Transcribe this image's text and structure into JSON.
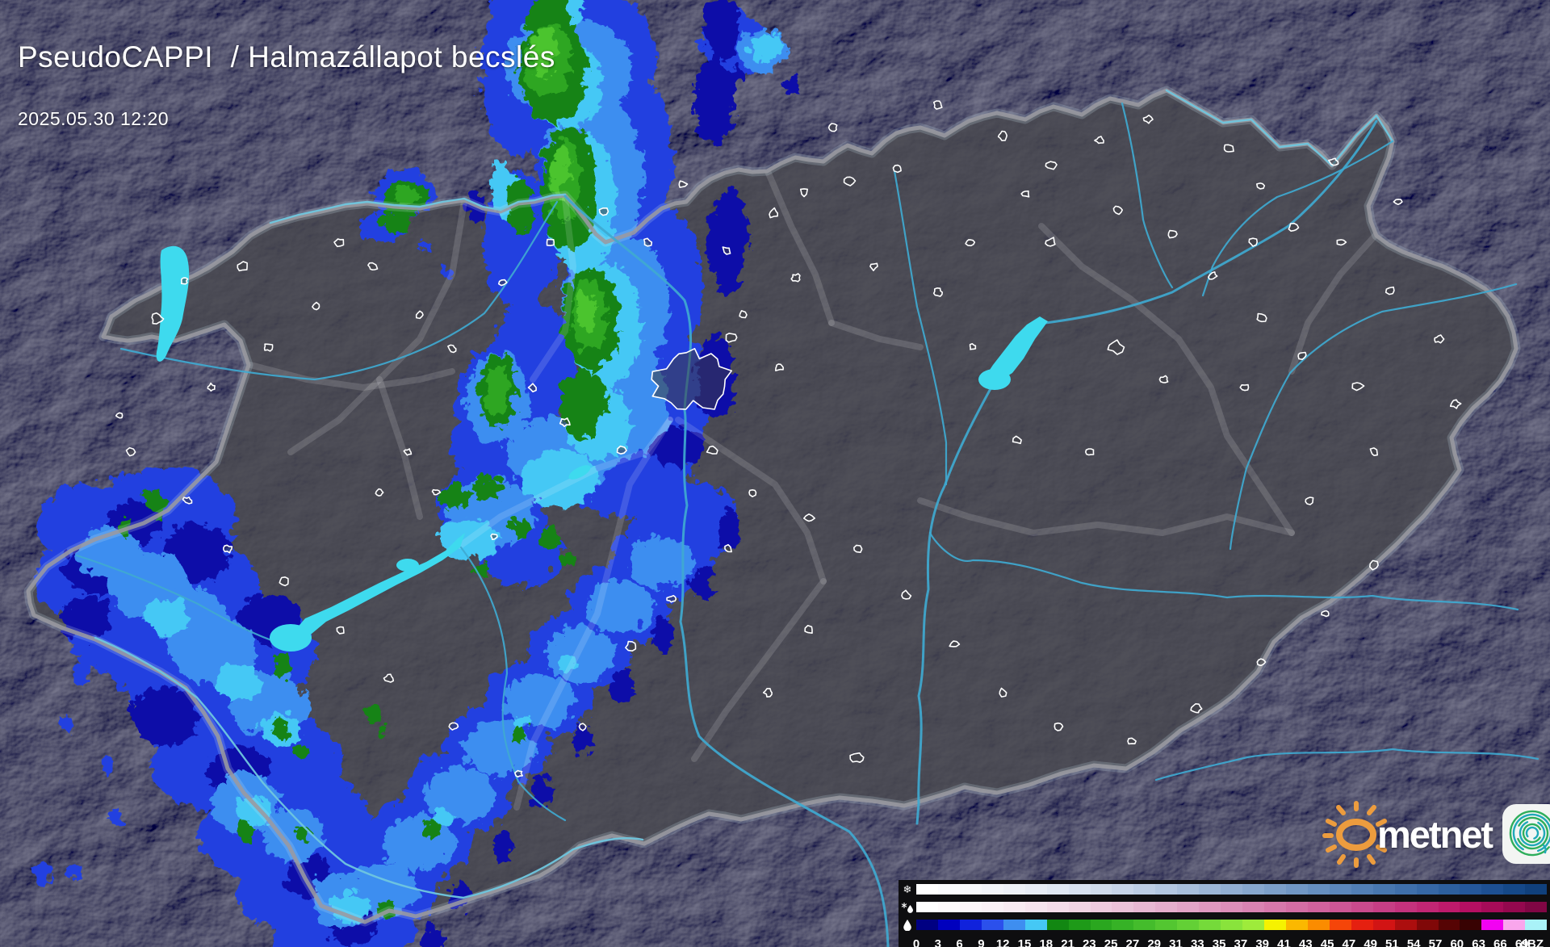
{
  "header": {
    "title": "PseudoCAPPI  / Halmazállapot becslés",
    "timestamp": "2025.05.30 12:20"
  },
  "branding": {
    "logo_text": "metnet",
    "sun_color": "#EC9C3E",
    "app_icon_colors": [
      "#2EAE5B",
      "#1FA8B8"
    ]
  },
  "legend": {
    "unit": "dBZ",
    "tick_labels": [
      "0",
      "3",
      "6",
      "9",
      "12",
      "15",
      "18",
      "21",
      "23",
      "25",
      "27",
      "29",
      "31",
      "33",
      "35",
      "37",
      "39",
      "41",
      "43",
      "45",
      "47",
      "49",
      "51",
      "54",
      "57",
      "60",
      "63",
      "66",
      "69",
      "dBZ"
    ],
    "rows": [
      {
        "id": "snow",
        "icon": "snowflake-icon",
        "colors": [
          "#FFFFFF",
          "#FBFCFE",
          "#F7F9FC",
          "#F2F5FA",
          "#EDF1F8",
          "#E7EDF6",
          "#E0E8F3",
          "#D8E2F0",
          "#D0DCEC",
          "#C7D5E9",
          "#BDCEE5",
          "#B3C7E1",
          "#A8BFDC",
          "#9DB7D8",
          "#92AFD3",
          "#87A7CE",
          "#7C9FC9",
          "#7197C5",
          "#668FC0",
          "#5C87BB",
          "#527FB6",
          "#4877B0",
          "#3F6FAB",
          "#3667A5",
          "#2D5F9E",
          "#25579A",
          "#1D4F92",
          "#154888",
          "#10407C"
        ]
      },
      {
        "id": "sleet",
        "icon": "sleet-icon",
        "colors": [
          "#FFFFFF",
          "#FEFBFC",
          "#FCF6F9",
          "#FAF1F6",
          "#F8EBF2",
          "#F6E4EE",
          "#F4DCE9",
          "#F1D4E4",
          "#EECBDF",
          "#EBC2D9",
          "#E8B8D3",
          "#E5AECD",
          "#E2A4C7",
          "#DF99C0",
          "#DC8EB9",
          "#D983B2",
          "#D678AB",
          "#D36DA4",
          "#D0629D",
          "#CD5695",
          "#CA4A8D",
          "#C73E85",
          "#C4327D",
          "#C12674",
          "#BD1A6B",
          "#B50F62",
          "#A60B58",
          "#94084E",
          "#800644"
        ]
      },
      {
        "id": "rain",
        "icon": "raindrop-icon",
        "colors": [
          "#000082",
          "#0000BE",
          "#1022DC",
          "#2B50EC",
          "#3E8EF0",
          "#45C8F5",
          "#128712",
          "#1E9A18",
          "#2AA71F",
          "#36B226",
          "#44BC2C",
          "#53C631",
          "#63D036",
          "#75DA3A",
          "#89E33C",
          "#9EEB3B",
          "#F6F200",
          "#FBB800",
          "#FB8C00",
          "#F54509",
          "#E52010",
          "#D21414",
          "#AC0E0E",
          "#800808",
          "#560404",
          "#380202",
          "#F202F2",
          "#F9A6EC",
          "#A9F2F8"
        ]
      }
    ]
  },
  "map": {
    "colors": {
      "land": "#4A4A4F",
      "water": "#3EDAEE",
      "river": "#3FA9D0",
      "border": "#9A9AA0",
      "border_glow": "#CFE6F2",
      "city_outline": "#FFFFFF"
    },
    "radar_palette": {
      "navy": "#0A10A8",
      "blue": "#2240E0",
      "light": "#3E8EF0",
      "cyan": "#45C8F5",
      "green_dark": "#168312",
      "green": "#2FA623",
      "green_light": "#4CC42E"
    }
  }
}
